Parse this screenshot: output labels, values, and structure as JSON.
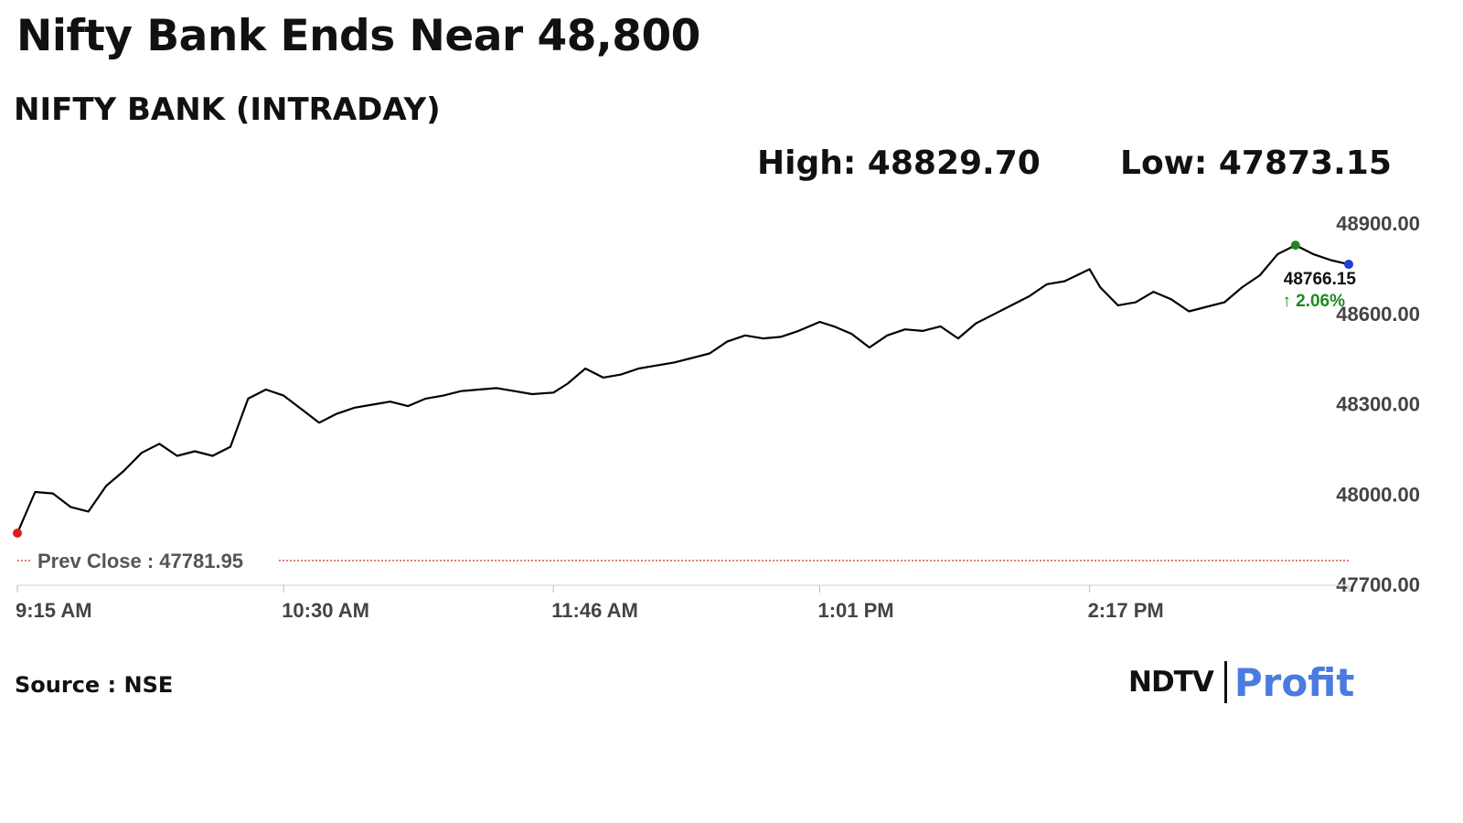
{
  "header": {
    "title": "Nifty Bank Ends Near 48,800",
    "subtitle": "NIFTY BANK (INTRADAY)",
    "high_label": "High: 48829.70",
    "low_label": "Low: 47873.15"
  },
  "footer": {
    "source": "Source : NSE",
    "brand_left": "NDTV",
    "brand_right": "Profit"
  },
  "colors": {
    "line": "#000000",
    "open_dot": "#e21b1b",
    "high_dot": "#1e8a1e",
    "last_dot": "#1f3fd6",
    "prev_close_line": "#c0392b",
    "change_positive": "#1e8a1e",
    "axis_text": "#444444"
  },
  "chart_data": {
    "type": "line",
    "title": "NIFTY BANK (INTRADAY)",
    "xlabel": "",
    "ylabel": "",
    "x_ticks": [
      "9:15 AM",
      "10:30 AM",
      "11:46 AM",
      "1:01 PM",
      "2:17 PM"
    ],
    "x_range": [
      "9:15 AM",
      "3:30 PM"
    ],
    "y_ticks": [
      "48900.00",
      "48600.00",
      "48300.00",
      "48000.00",
      "47700.00"
    ],
    "ylim": [
      47700,
      48900
    ],
    "y_axis_position": "right",
    "grid": false,
    "prev_close": 47781.95,
    "prev_close_label": "Prev Close : 47781.95",
    "high": 48829.7,
    "low": 47873.15,
    "last_value": 48766.15,
    "last_value_label": "48766.15",
    "change_label": "↑ 2.06%",
    "series": [
      {
        "x": [
          "9:15 AM",
          "9:20 AM",
          "9:25 AM",
          "9:30 AM",
          "9:35 AM",
          "9:40 AM",
          "9:45 AM",
          "9:50 AM",
          "9:55 AM",
          "10:00 AM",
          "10:05 AM",
          "10:10 AM",
          "10:15 AM",
          "10:20 AM",
          "10:25 AM",
          "10:30 AM",
          "10:35 AM",
          "10:40 AM",
          "10:45 AM",
          "10:50 AM",
          "10:55 AM",
          "11:00 AM",
          "11:05 AM",
          "11:10 AM",
          "11:15 AM",
          "11:20 AM",
          "11:25 AM",
          "11:30 AM",
          "11:35 AM",
          "11:40 AM",
          "11:46 AM",
          "11:50 AM",
          "11:55 AM",
          "12:00 PM",
          "12:05 PM",
          "12:10 PM",
          "12:15 PM",
          "12:20 PM",
          "12:25 PM",
          "12:30 PM",
          "12:35 PM",
          "12:40 PM",
          "12:45 PM",
          "12:50 PM",
          "12:55 PM",
          "1:01 PM",
          "1:05 PM",
          "1:10 PM",
          "1:15 PM",
          "1:20 PM",
          "1:25 PM",
          "1:30 PM",
          "1:35 PM",
          "1:40 PM",
          "1:45 PM",
          "1:50 PM",
          "1:55 PM",
          "2:00 PM",
          "2:05 PM",
          "2:10 PM",
          "2:17 PM",
          "2:20 PM",
          "2:25 PM",
          "2:30 PM",
          "2:35 PM",
          "2:40 PM",
          "2:45 PM",
          "2:50 PM",
          "2:55 PM",
          "3:00 PM",
          "3:05 PM",
          "3:10 PM",
          "3:15 PM",
          "3:20 PM",
          "3:25 PM",
          "3:30 PM"
        ],
        "values": [
          47873.15,
          48010,
          48005,
          47960,
          47945,
          48030,
          48080,
          48140,
          48170,
          48130,
          48145,
          48130,
          48160,
          48320,
          48350,
          48330,
          48285,
          48240,
          48270,
          48290,
          48300,
          48310,
          48295,
          48320,
          48330,
          48345,
          48350,
          48355,
          48345,
          48335,
          48340,
          48370,
          48420,
          48390,
          48400,
          48420,
          48430,
          48440,
          48455,
          48470,
          48510,
          48530,
          48520,
          48525,
          48545,
          48575,
          48560,
          48535,
          48490,
          48530,
          48550,
          48545,
          48560,
          48520,
          48570,
          48600,
          48630,
          48660,
          48700,
          48710,
          48750,
          48690,
          48630,
          48640,
          48675,
          48650,
          48610,
          48625,
          48640,
          48690,
          48730,
          48800,
          48829.7,
          48800,
          48780,
          48766.15
        ]
      }
    ]
  }
}
